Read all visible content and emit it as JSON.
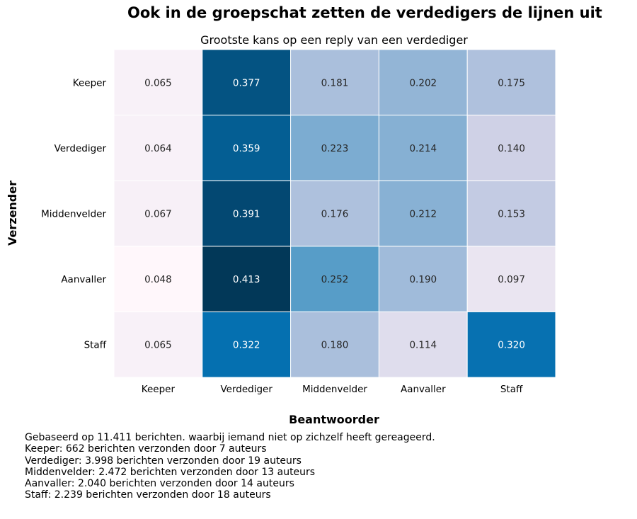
{
  "header": {
    "title": "Ook in de groepschat zetten de verdedigers de lijnen uit"
  },
  "chart_data": {
    "type": "heatmap",
    "title": "Grootste kans op een reply van een verdediger",
    "xlabel": "Beantwoorder",
    "ylabel": "Verzender",
    "x_categories": [
      "Keeper",
      "Verdediger",
      "Middenvelder",
      "Aanvaller",
      "Staff"
    ],
    "y_categories": [
      "Keeper",
      "Verdediger",
      "Middenvelder",
      "Aanvaller",
      "Staff"
    ],
    "values": [
      [
        0.065,
        0.377,
        0.181,
        0.202,
        0.175
      ],
      [
        0.064,
        0.359,
        0.223,
        0.214,
        0.14
      ],
      [
        0.067,
        0.391,
        0.176,
        0.212,
        0.153
      ],
      [
        0.048,
        0.413,
        0.252,
        0.19,
        0.097
      ],
      [
        0.065,
        0.322,
        0.18,
        0.114,
        0.32
      ]
    ],
    "colormap": "PuBu",
    "value_range": [
      0.048,
      0.413
    ],
    "colorbar": false,
    "grid_color": "#ffffff"
  },
  "footnote": {
    "lines": [
      "Gebaseerd op 11.411 berichten. waarbij iemand niet op zichzelf heeft gereageerd.",
      "Keeper: 662 berichten verzonden door 7 auteurs",
      "Verdediger: 3.998 berichten verzonden door 19 auteurs",
      "Middenvelder: 2.472 berichten verzonden door 13 auteurs",
      "Aanvaller: 2.040 berichten verzonden door 14 auteurs",
      "Staff: 2.239 berichten verzonden door 18 auteurs"
    ]
  }
}
